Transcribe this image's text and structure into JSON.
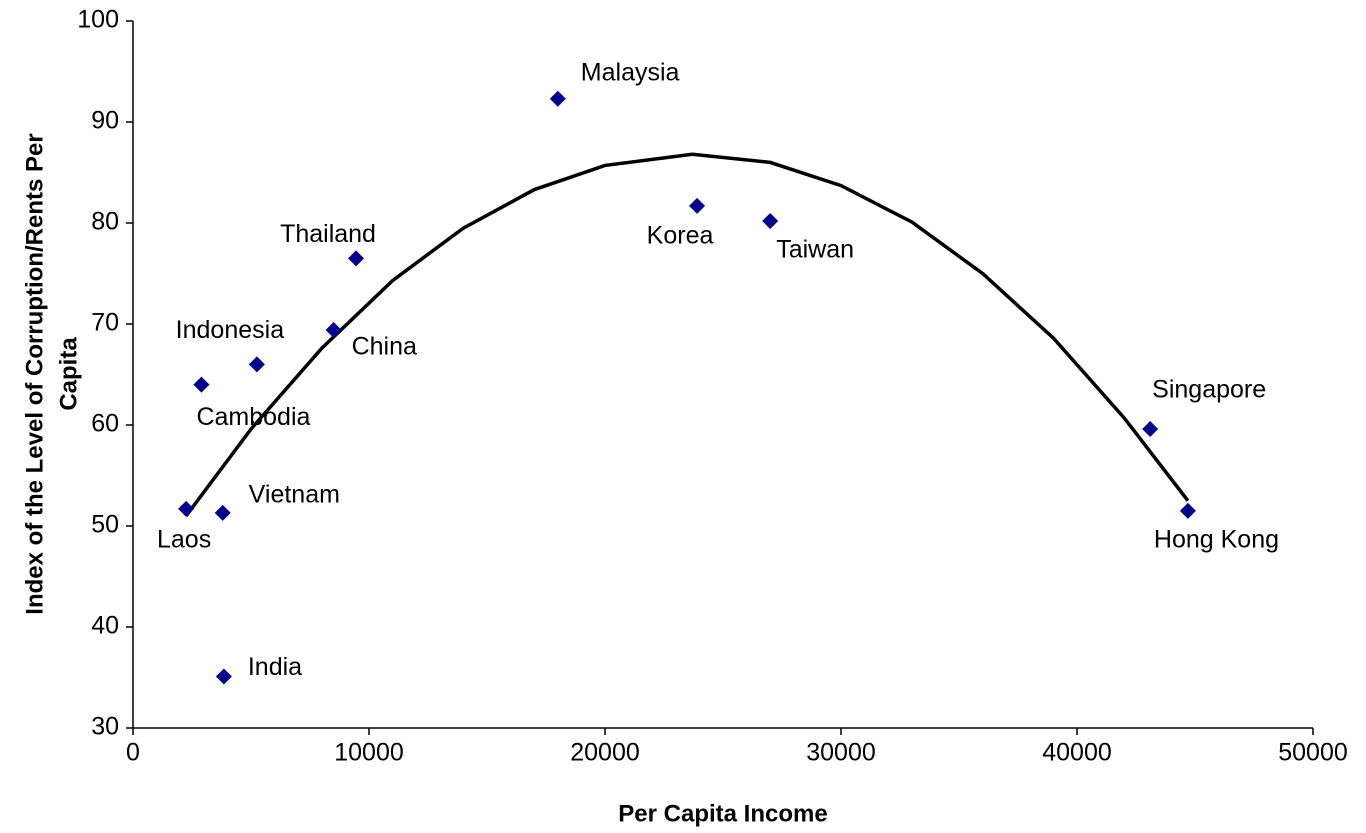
{
  "chart_data": {
    "type": "scatter",
    "xlabel": "Per Capita Income",
    "ylabel": [
      "Index of the Level of Corruption/Rents Per",
      "Capita"
    ],
    "xlim": [
      0,
      50000
    ],
    "xticks": [
      0,
      10000,
      20000,
      30000,
      40000,
      50000
    ],
    "ylim": [
      30,
      100
    ],
    "yticks": [
      30,
      40,
      50,
      60,
      70,
      80,
      90,
      100
    ],
    "grid": false,
    "series": [
      {
        "color": "#00008b",
        "point_labels": [
          "Malaysia",
          "Korea",
          "Taiwan",
          "Thailand",
          "China",
          "Indonesia",
          "Cambodia",
          "Laos",
          "Vietnam",
          "India",
          "Singapore",
          "Hong Kong"
        ],
        "x": [
          18000,
          23900,
          27000,
          9450,
          8500,
          5250,
          2900,
          2250,
          3800,
          3850,
          43100,
          44700
        ],
        "values": [
          92.3,
          81.7,
          80.2,
          76.5,
          69.4,
          66.0,
          64.0,
          51.7,
          51.3,
          35.1,
          59.6,
          51.5
        ]
      }
    ],
    "trendline": {
      "color": "#000000",
      "x": [
        2250,
        5000,
        8000,
        11000,
        14000,
        17000,
        20000,
        23700,
        27000,
        30000,
        33000,
        36000,
        39000,
        42000,
        44700
      ],
      "values": [
        51.0,
        59.6,
        67.6,
        74.3,
        79.5,
        83.3,
        85.7,
        86.8,
        86.0,
        83.7,
        80.1,
        75.0,
        68.6,
        60.7,
        52.5
      ]
    }
  }
}
